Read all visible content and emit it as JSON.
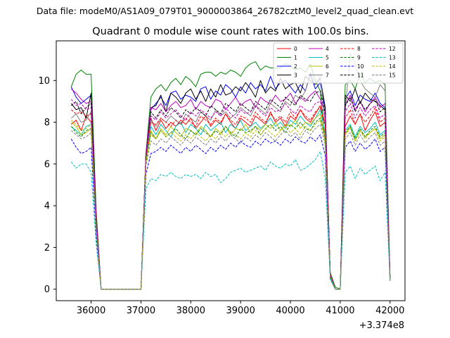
{
  "chart_data": {
    "type": "line",
    "suptitle": "Data file: modeM0/AS1A09_079T01_9000003864_26782cztM0_level2_quad_clean.evt",
    "title": "Quadrant 0 module wise count rates with 100.0s bins.",
    "xlabel": "",
    "ylabel": "",
    "x_offset_label": "+3.374e8",
    "xlim": [
      35300,
      42300
    ],
    "ylim": [
      -0.55,
      11.9
    ],
    "x_ticks": [
      36000,
      37000,
      38000,
      39000,
      40000,
      41000,
      42000
    ],
    "x_tick_labels": [
      "36000",
      "37000",
      "38000",
      "39000",
      "40000",
      "41000",
      "42000"
    ],
    "y_ticks": [
      0,
      2,
      4,
      6,
      8,
      10
    ],
    "y_tick_labels": [
      "0",
      "2",
      "4",
      "6",
      "8",
      "10"
    ],
    "legend_position": "upper-right",
    "x": [
      35600,
      35700,
      35800,
      35900,
      36000,
      36100,
      36200,
      36300,
      36400,
      36500,
      36600,
      36700,
      36800,
      36900,
      37000,
      37100,
      37200,
      37300,
      37400,
      37500,
      37600,
      37700,
      37800,
      37900,
      38000,
      38100,
      38200,
      38300,
      38400,
      38500,
      38600,
      38700,
      38800,
      38900,
      39000,
      39100,
      39200,
      39300,
      39400,
      39500,
      39600,
      39700,
      39800,
      39900,
      40000,
      40100,
      40200,
      40300,
      40400,
      40500,
      40600,
      40700,
      40800,
      40900,
      41000,
      41100,
      41200,
      41300,
      41400,
      41500,
      41600,
      41700,
      41800,
      41900,
      42000
    ],
    "series": [
      {
        "name": "0",
        "color": "#ff0000",
        "dash": "solid",
        "values": [
          7.9,
          8.1,
          7.6,
          8.3,
          8.0,
          3.0,
          0.0,
          0.0,
          0.0,
          0.0,
          0.0,
          0.0,
          0.0,
          0.0,
          0.0,
          6.3,
          8.2,
          7.6,
          8.1,
          7.7,
          8.0,
          7.8,
          8.1,
          7.9,
          8.2,
          7.7,
          8.0,
          8.3,
          7.8,
          8.1,
          7.9,
          8.4,
          8.0,
          7.7,
          8.2,
          8.0,
          7.8,
          8.3,
          8.1,
          7.9,
          8.5,
          8.0,
          8.2,
          7.8,
          8.3,
          8.1,
          8.6,
          8.2,
          8.0,
          8.4,
          8.8,
          7.9,
          0.7,
          0.0,
          0.0,
          7.8,
          8.3,
          7.9,
          8.4,
          7.6,
          8.1,
          8.5,
          7.8,
          8.0,
          0.5
        ]
      },
      {
        "name": "1",
        "color": "#008000",
        "dash": "solid",
        "values": [
          9.7,
          10.3,
          10.5,
          10.3,
          10.3,
          3.8,
          0.0,
          0.0,
          0.0,
          0.0,
          0.0,
          0.0,
          0.0,
          0.0,
          0.0,
          6.5,
          9.2,
          9.6,
          9.8,
          9.5,
          9.9,
          10.1,
          9.8,
          10.2,
          10.0,
          9.7,
          10.3,
          10.4,
          10.4,
          10.2,
          10.4,
          10.3,
          10.5,
          10.4,
          10.2,
          10.6,
          10.8,
          10.9,
          10.5,
          10.7,
          10.6,
          10.6,
          10.6,
          10.8,
          10.7,
          10.5,
          10.6,
          10.4,
          10.8,
          10.0,
          9.5,
          7.0,
          0.8,
          0.1,
          0.0,
          9.8,
          10.0,
          9.6,
          10.3,
          9.9,
          10.1,
          9.9,
          10.0,
          9.8,
          0.6
        ]
      },
      {
        "name": "2",
        "color": "#0000ff",
        "dash": "solid",
        "values": [
          9.7,
          9.2,
          8.9,
          9.1,
          9.3,
          3.6,
          0.0,
          0.0,
          0.0,
          0.0,
          0.0,
          0.0,
          0.0,
          0.0,
          0.0,
          6.4,
          8.6,
          8.9,
          9.2,
          8.8,
          9.4,
          9.5,
          9.1,
          9.3,
          9.2,
          9.0,
          9.6,
          9.7,
          9.1,
          9.5,
          9.3,
          9.8,
          9.6,
          9.2,
          9.7,
          9.4,
          9.9,
          9.6,
          9.8,
          9.5,
          10.2,
          9.6,
          9.9,
          10.0,
          9.7,
          9.4,
          9.8,
          9.5,
          10.3,
          9.6,
          9.9,
          8.6,
          0.6,
          0.0,
          0.0,
          9.1,
          9.5,
          8.8,
          9.3,
          9.1,
          9.0,
          9.4,
          8.9,
          8.7,
          0.6
        ]
      },
      {
        "name": "3",
        "color": "#000000",
        "dash": "solid",
        "values": [
          8.9,
          8.6,
          8.7,
          8.2,
          9.4,
          3.6,
          0.0,
          0.0,
          0.0,
          0.0,
          0.0,
          0.0,
          0.0,
          0.0,
          0.0,
          6.4,
          8.7,
          8.8,
          9.3,
          8.5,
          9.4,
          9.2,
          8.9,
          9.4,
          9.6,
          9.1,
          9.5,
          9.0,
          9.6,
          9.2,
          9.8,
          9.3,
          9.4,
          9.7,
          9.5,
          9.9,
          9.6,
          9.2,
          10.0,
          9.4,
          9.7,
          9.5,
          10.1,
          9.6,
          9.8,
          9.9,
          9.4,
          10.2,
          10.0,
          9.8,
          10.1,
          8.7,
          0.6,
          0.0,
          0.0,
          9.3,
          9.0,
          9.6,
          8.9,
          9.4,
          9.1,
          9.0,
          8.8,
          8.6,
          0.5
        ]
      },
      {
        "name": "4",
        "color": "#bf00bf",
        "dash": "solid",
        "values": [
          9.6,
          9.4,
          9.1,
          8.9,
          9.0,
          3.5,
          0.0,
          0.0,
          0.0,
          0.0,
          0.0,
          0.0,
          0.0,
          0.0,
          0.0,
          6.5,
          8.7,
          8.6,
          8.9,
          8.5,
          8.8,
          9.0,
          8.7,
          8.8,
          9.1,
          8.6,
          9.0,
          8.8,
          8.7,
          9.1,
          9.0,
          8.6,
          8.9,
          9.2,
          8.8,
          9.0,
          9.1,
          8.7,
          9.2,
          9.0,
          8.9,
          9.3,
          9.0,
          9.1,
          9.4,
          8.9,
          9.2,
          9.0,
          9.3,
          9.5,
          9.1,
          8.5,
          0.6,
          0.0,
          0.0,
          8.8,
          9.3,
          8.6,
          9.0,
          8.5,
          8.9,
          9.2,
          8.7,
          8.9,
          0.5
        ]
      },
      {
        "name": "5",
        "color": "#00bfbf",
        "dash": "solid",
        "values": [
          7.8,
          7.6,
          7.4,
          7.8,
          7.9,
          3.0,
          0.0,
          0.0,
          0.0,
          0.0,
          0.0,
          0.0,
          0.0,
          0.0,
          0.0,
          6.2,
          7.8,
          7.4,
          7.9,
          7.6,
          7.3,
          7.8,
          8.0,
          7.5,
          7.9,
          7.7,
          7.4,
          7.9,
          7.6,
          7.8,
          8.0,
          7.5,
          7.9,
          7.7,
          8.1,
          7.6,
          7.8,
          8.0,
          7.7,
          7.9,
          8.2,
          7.8,
          8.0,
          7.7,
          8.1,
          7.9,
          8.3,
          8.0,
          7.8,
          8.2,
          8.6,
          7.5,
          0.6,
          0.0,
          0.0,
          7.6,
          7.9,
          7.3,
          7.8,
          7.5,
          7.7,
          8.0,
          7.4,
          7.6,
          0.4
        ]
      },
      {
        "name": "6",
        "color": "#bfbf00",
        "dash": "solid",
        "values": [
          8.0,
          7.8,
          7.4,
          7.5,
          7.7,
          3.0,
          0.0,
          0.0,
          0.0,
          0.0,
          0.0,
          0.0,
          0.0,
          0.0,
          0.0,
          6.0,
          7.6,
          7.2,
          7.7,
          7.4,
          7.8,
          7.5,
          7.3,
          7.7,
          7.6,
          7.4,
          7.8,
          7.6,
          7.3,
          7.7,
          7.5,
          7.8,
          7.4,
          7.7,
          7.6,
          7.9,
          7.5,
          7.8,
          7.6,
          7.9,
          7.7,
          8.0,
          7.6,
          7.9,
          7.8,
          8.1,
          7.7,
          8.0,
          7.9,
          8.2,
          8.4,
          7.2,
          0.6,
          0.0,
          0.0,
          7.4,
          7.8,
          7.1,
          7.6,
          7.3,
          7.5,
          7.7,
          7.2,
          7.4,
          0.4
        ]
      },
      {
        "name": "7",
        "color": "#808080",
        "dash": "solid",
        "values": [
          8.2,
          8.4,
          8.0,
          8.1,
          8.5,
          3.2,
          0.0,
          0.0,
          0.0,
          0.0,
          0.0,
          0.0,
          0.0,
          0.0,
          0.0,
          6.3,
          8.1,
          7.8,
          8.2,
          8.0,
          8.3,
          8.1,
          7.9,
          8.4,
          8.2,
          8.0,
          8.5,
          8.3,
          8.1,
          8.6,
          8.3,
          8.5,
          8.2,
          8.4,
          8.7,
          8.5,
          8.3,
          8.8,
          8.6,
          8.4,
          8.9,
          8.7,
          8.5,
          9.0,
          8.8,
          9.3,
          9.1,
          9.5,
          10.4,
          9.8,
          10.2,
          8.0,
          0.7,
          0.0,
          0.0,
          8.5,
          11.3,
          10.8,
          10.0,
          9.6,
          9.4,
          9.2,
          9.8,
          9.5,
          0.5
        ]
      },
      {
        "name": "8",
        "color": "#ff0000",
        "dash": "dashed",
        "values": [
          8.6,
          8.4,
          8.5,
          8.3,
          8.4,
          3.2,
          0.0,
          0.0,
          0.0,
          0.0,
          0.0,
          0.0,
          0.0,
          0.0,
          0.0,
          6.3,
          8.0,
          7.9,
          8.2,
          8.0,
          7.8,
          8.1,
          7.9,
          8.2,
          8.0,
          7.8,
          8.3,
          8.1,
          7.9,
          8.2,
          8.0,
          8.4,
          8.1,
          7.9,
          8.3,
          8.2,
          8.0,
          8.5,
          8.2,
          8.0,
          8.4,
          8.1,
          8.3,
          8.0,
          8.5,
          8.2,
          8.6,
          8.3,
          8.1,
          8.5,
          8.7,
          7.8,
          0.7,
          0.0,
          0.0,
          8.2,
          8.6,
          7.9,
          8.4,
          8.0,
          8.3,
          8.7,
          8.0,
          8.2,
          0.5
        ]
      },
      {
        "name": "9",
        "color": "#008000",
        "dash": "dashed",
        "values": [
          7.8,
          7.5,
          7.3,
          7.6,
          7.7,
          3.0,
          0.0,
          0.0,
          0.0,
          0.0,
          0.0,
          0.0,
          0.0,
          0.0,
          0.0,
          6.1,
          7.5,
          7.2,
          7.6,
          7.3,
          7.5,
          7.7,
          7.4,
          7.2,
          7.6,
          7.4,
          7.7,
          7.5,
          7.3,
          7.6,
          7.4,
          7.8,
          7.5,
          7.3,
          7.7,
          7.5,
          7.6,
          7.8,
          7.4,
          7.7,
          7.9,
          7.6,
          7.8,
          7.5,
          7.9,
          7.7,
          8.0,
          7.7,
          7.6,
          8.0,
          8.2,
          7.2,
          0.6,
          0.0,
          0.0,
          7.5,
          7.8,
          7.2,
          7.7,
          7.3,
          7.6,
          7.8,
          7.3,
          7.5,
          0.4
        ]
      },
      {
        "name": "10",
        "color": "#0000ff",
        "dash": "dashed",
        "values": [
          7.2,
          6.8,
          6.5,
          6.6,
          6.8,
          2.6,
          0.0,
          0.0,
          0.0,
          0.0,
          0.0,
          0.0,
          0.0,
          0.0,
          0.0,
          5.5,
          6.5,
          6.6,
          6.8,
          6.6,
          6.9,
          6.7,
          6.5,
          6.8,
          6.6,
          6.9,
          6.7,
          6.5,
          6.8,
          6.6,
          6.9,
          6.7,
          7.0,
          6.8,
          7.1,
          6.9,
          6.8,
          7.1,
          6.9,
          7.2,
          7.0,
          7.1,
          6.9,
          7.2,
          7.0,
          7.3,
          7.1,
          7.0,
          7.3,
          7.1,
          7.4,
          6.4,
          0.5,
          0.0,
          0.0,
          6.8,
          7.1,
          6.6,
          7.0,
          6.7,
          6.9,
          7.2,
          6.6,
          6.8,
          0.4
        ]
      },
      {
        "name": "11",
        "color": "#000000",
        "dash": "dashed",
        "values": [
          8.8,
          9.0,
          8.4,
          8.7,
          8.9,
          3.3,
          0.0,
          0.0,
          0.0,
          0.0,
          0.0,
          0.0,
          0.0,
          0.0,
          0.0,
          6.4,
          8.5,
          8.2,
          8.6,
          8.3,
          8.7,
          8.5,
          8.2,
          8.6,
          8.4,
          8.7,
          8.5,
          8.3,
          8.8,
          8.6,
          8.4,
          8.9,
          8.7,
          8.5,
          8.9,
          8.7,
          8.5,
          9.0,
          8.8,
          8.6,
          9.1,
          8.9,
          8.7,
          9.2,
          9.0,
          8.8,
          9.3,
          9.1,
          9.0,
          9.4,
          9.5,
          8.4,
          0.7,
          0.0,
          0.0,
          8.8,
          9.2,
          8.5,
          9.0,
          8.6,
          8.9,
          9.1,
          8.5,
          8.7,
          0.5
        ]
      },
      {
        "name": "12",
        "color": "#bf00bf",
        "dash": "dashed",
        "values": [
          9.1,
          8.8,
          8.9,
          8.6,
          8.7,
          3.3,
          0.0,
          0.0,
          0.0,
          0.0,
          0.0,
          0.0,
          0.0,
          0.0,
          0.0,
          6.4,
          8.3,
          8.1,
          8.5,
          8.2,
          8.4,
          8.6,
          8.3,
          8.1,
          8.5,
          8.3,
          8.6,
          8.4,
          8.2,
          8.5,
          8.3,
          8.7,
          8.4,
          8.2,
          8.6,
          8.4,
          8.5,
          8.8,
          8.5,
          8.3,
          8.7,
          8.5,
          8.6,
          8.9,
          8.6,
          8.4,
          8.8,
          8.6,
          8.5,
          8.9,
          9.0,
          8.2,
          0.7,
          0.0,
          0.0,
          8.5,
          8.9,
          8.2,
          8.7,
          8.3,
          8.6,
          8.8,
          8.2,
          8.4,
          0.5
        ]
      },
      {
        "name": "13",
        "color": "#00bfbf",
        "dash": "dashed",
        "values": [
          6.1,
          5.8,
          6.0,
          6.0,
          5.6,
          2.2,
          0.0,
          0.0,
          0.0,
          0.0,
          0.0,
          0.0,
          0.0,
          0.0,
          0.0,
          4.8,
          5.3,
          5.2,
          5.5,
          5.4,
          5.6,
          5.4,
          5.3,
          5.5,
          5.4,
          5.5,
          5.3,
          5.6,
          5.4,
          5.5,
          5.1,
          5.3,
          5.6,
          5.7,
          5.8,
          5.6,
          5.7,
          5.8,
          5.9,
          5.7,
          6.1,
          5.9,
          5.8,
          6.0,
          5.9,
          6.2,
          5.7,
          5.8,
          6.0,
          6.2,
          6.6,
          5.3,
          0.5,
          0.0,
          0.0,
          5.6,
          5.9,
          5.3,
          5.8,
          5.5,
          5.7,
          5.9,
          5.2,
          5.6,
          0.4
        ]
      },
      {
        "name": "14",
        "color": "#bfbf00",
        "dash": "dashed",
        "values": [
          8.1,
          7.9,
          7.6,
          7.7,
          7.9,
          3.0,
          0.0,
          0.0,
          0.0,
          0.0,
          0.0,
          0.0,
          0.0,
          0.0,
          0.0,
          6.1,
          7.4,
          7.2,
          7.6,
          7.3,
          7.5,
          7.3,
          7.1,
          7.4,
          7.2,
          7.5,
          7.3,
          7.1,
          7.4,
          7.2,
          7.5,
          7.3,
          7.6,
          7.4,
          7.2,
          7.5,
          7.3,
          7.6,
          7.4,
          7.7,
          7.5,
          7.3,
          7.6,
          7.8,
          7.5,
          7.7,
          7.4,
          7.8,
          7.6,
          7.9,
          8.1,
          7.1,
          0.6,
          0.0,
          0.0,
          7.4,
          7.7,
          7.1,
          7.6,
          7.2,
          7.5,
          7.7,
          7.1,
          7.3,
          0.4
        ]
      },
      {
        "name": "15",
        "color": "#808080",
        "dash": "dashed",
        "values": [
          7.6,
          7.4,
          7.2,
          7.3,
          7.5,
          2.9,
          0.0,
          0.0,
          0.0,
          0.0,
          0.0,
          0.0,
          0.0,
          0.0,
          0.0,
          5.9,
          7.1,
          6.9,
          7.2,
          7.0,
          7.3,
          7.1,
          6.9,
          7.2,
          7.0,
          7.3,
          7.1,
          6.9,
          7.2,
          7.0,
          7.3,
          7.1,
          7.4,
          7.2,
          7.0,
          7.3,
          7.1,
          7.4,
          7.2,
          7.5,
          7.3,
          7.1,
          7.4,
          7.6,
          7.3,
          7.5,
          7.2,
          7.6,
          7.4,
          7.7,
          7.9,
          6.9,
          0.6,
          0.0,
          0.0,
          7.2,
          7.5,
          6.9,
          7.4,
          7.0,
          7.3,
          7.5,
          6.9,
          7.1,
          0.4
        ]
      }
    ]
  }
}
